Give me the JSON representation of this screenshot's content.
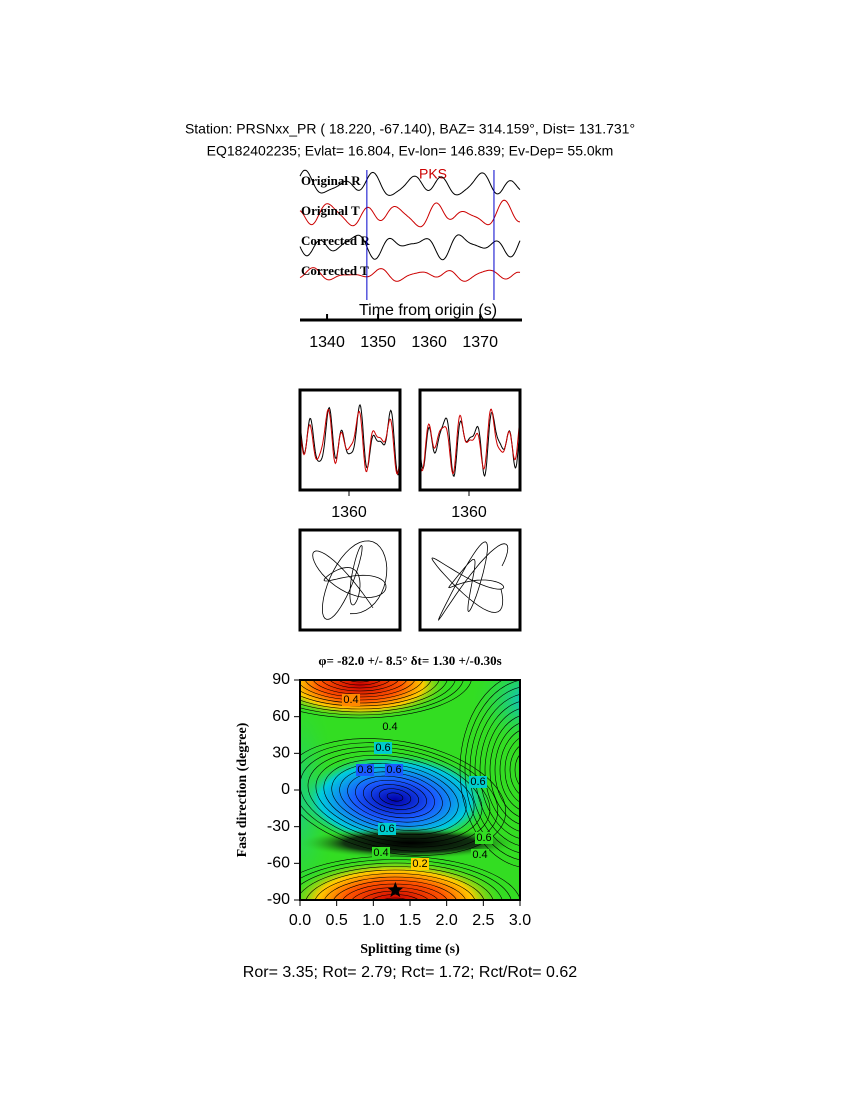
{
  "header": {
    "line1": "Station: PRSNxx_PR (  18.220,  -67.140), BAZ=  314.159°, Dist=  131.731°",
    "line2": "EQ182402235; Evlat=  16.804, Ev-lon= 146.839; Ev-Dep= 55.0km"
  },
  "chart_data": [
    {
      "type": "waveform",
      "series": [
        {
          "name": "Original R",
          "color": "#000000"
        },
        {
          "name": "Original T",
          "color": "#cc0000"
        },
        {
          "name": "Corrected R",
          "color": "#000000"
        },
        {
          "name": "Corrected T",
          "color": "#cc0000"
        }
      ],
      "annotation": "PKS",
      "x_label": "Time from origin (s)",
      "xlim": [
        1334.7,
        1377.8
      ],
      "xticks": [
        1340,
        1350,
        1360,
        1370
      ],
      "window": [
        1347.8,
        1372.7
      ],
      "window_color": "#0000cc"
    },
    {
      "type": "waveform-panel",
      "xlim": [
        1347.8,
        1372.7
      ],
      "xticks": [
        1360
      ]
    },
    {
      "type": "waveform-panel",
      "xlim": [
        1347.8,
        1372.7
      ],
      "xticks": [
        1360
      ]
    },
    {
      "type": "contour",
      "title": "φ= -82.0 +/- 8.5° δt= 1.30 +/-0.30s",
      "x_label": "Splitting time (s)",
      "y_label": "Fast direction (degree)",
      "xlim": [
        0,
        3
      ],
      "ylim": [
        -90,
        90
      ],
      "xticks": [
        {
          "value": 0,
          "label": "0.0"
        },
        0.5,
        {
          "value": 1,
          "label": "1.0"
        },
        1.5,
        {
          "value": 2,
          "label": "2.0"
        },
        2.5,
        {
          "value": 3,
          "label": "3.0"
        }
      ],
      "yticks": [
        90,
        60,
        30,
        0,
        -30,
        -60,
        -90
      ],
      "contour_levels": [
        0.2,
        0.4,
        0.6,
        0.8
      ],
      "best": {
        "x": 1.3,
        "y": -82
      }
    }
  ],
  "footer": "Ror= 3.35; Rot= 2.79; Rct= 1.72; Rct/Rot= 0.62"
}
